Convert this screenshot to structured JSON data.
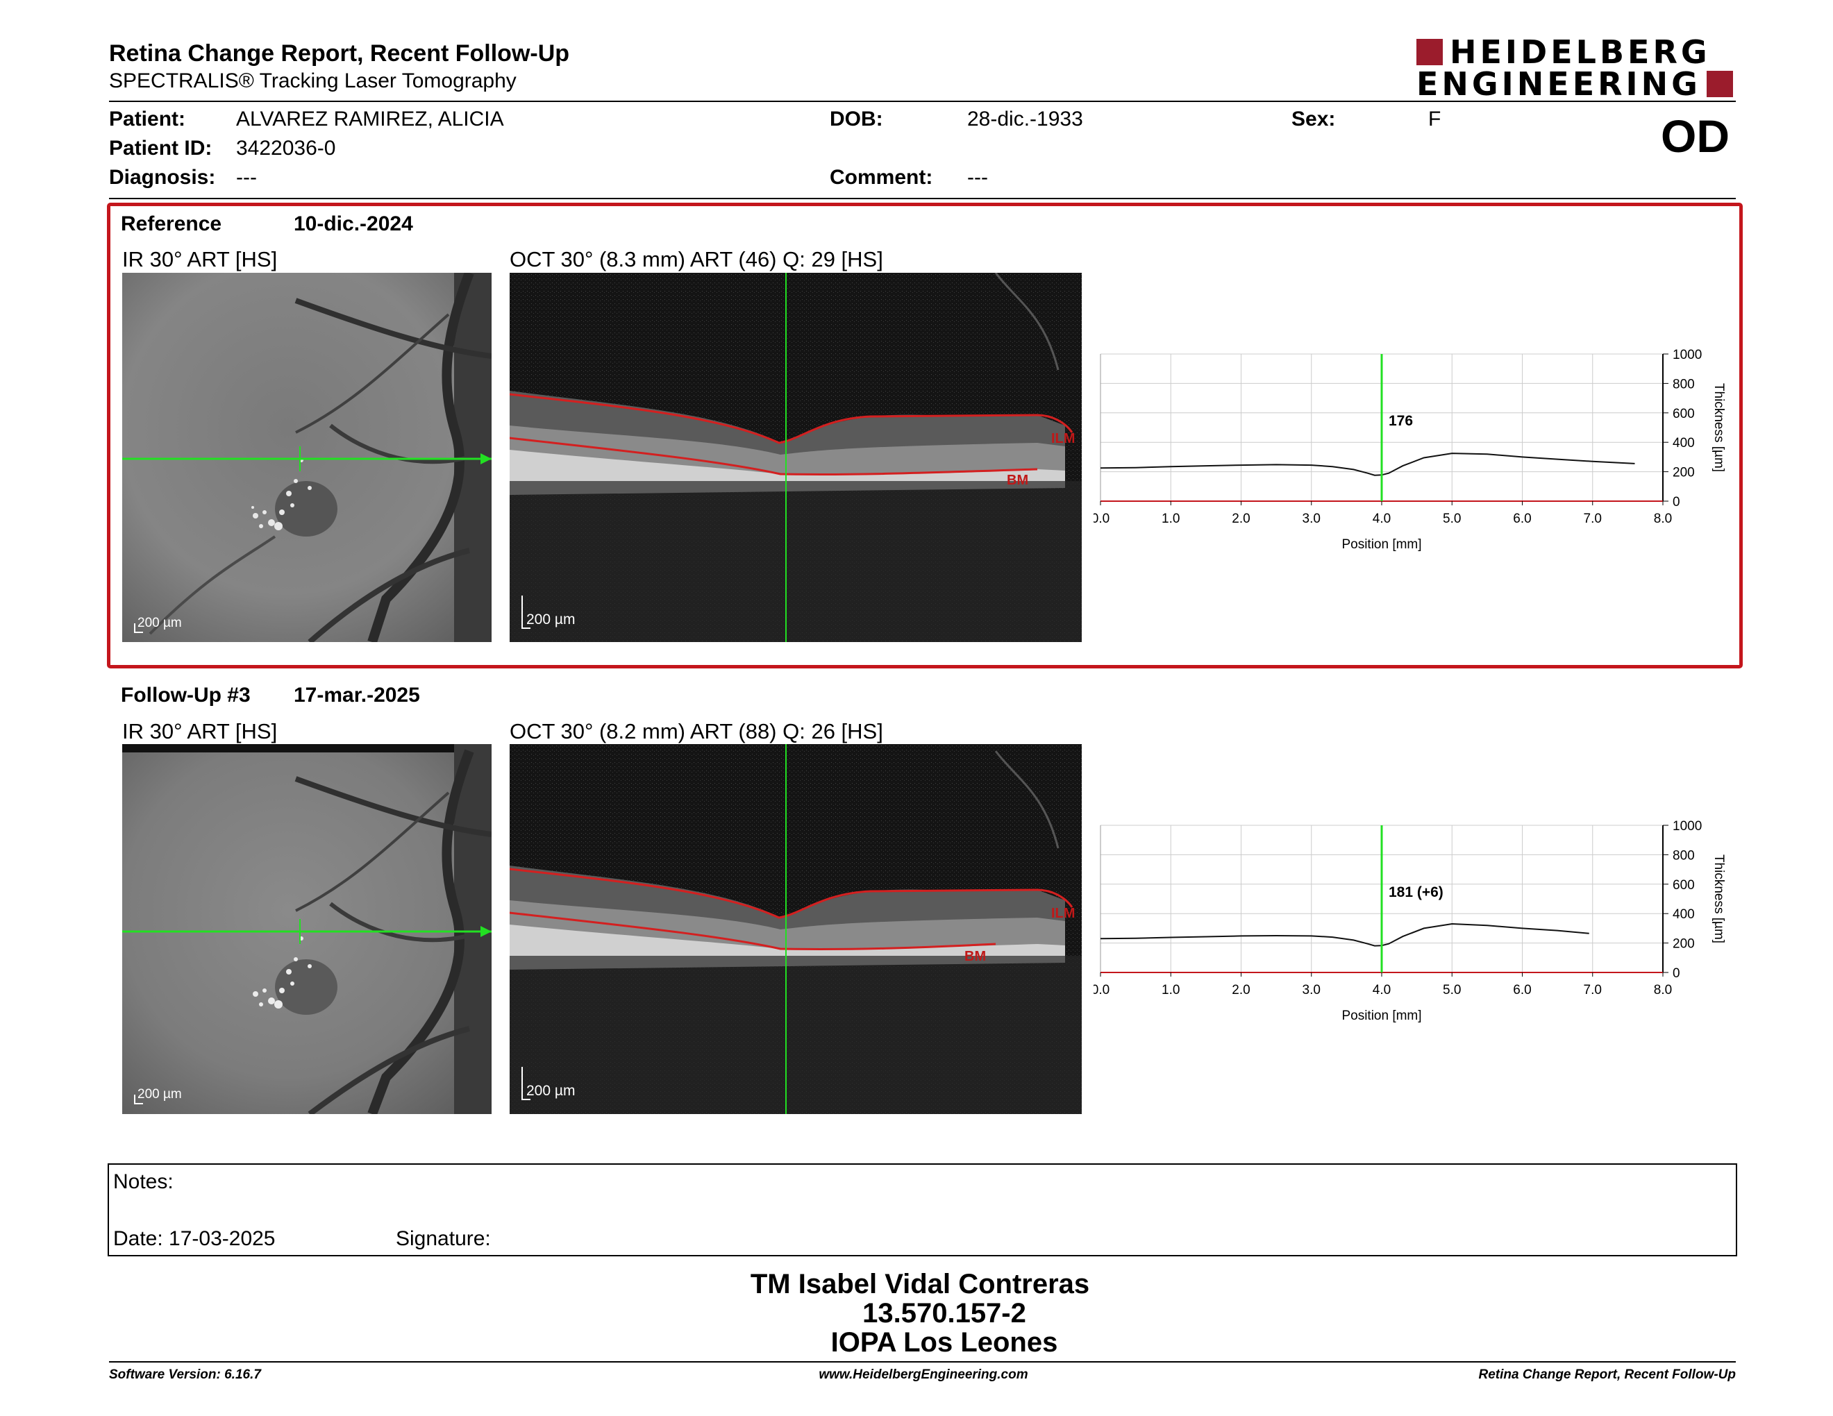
{
  "header": {
    "title": "Retina Change Report, Recent Follow-Up",
    "subtitle": "SPECTRALIS® Tracking Laser Tomography",
    "logo_line1": "HEIDELBERG",
    "logo_line2": "ENGINEERING",
    "eye": "OD"
  },
  "patient": {
    "patient_label": "Patient:",
    "patient_value": "ALVAREZ RAMIREZ, ALICIA",
    "dob_label": "DOB:",
    "dob_value": "28-dic.-1933",
    "sex_label": "Sex:",
    "sex_value": "F",
    "id_label": "Patient ID:",
    "id_value": "3422036-0",
    "diagnosis_label": "Diagnosis:",
    "diagnosis_value": "---",
    "comment_label": "Comment:",
    "comment_value": "---"
  },
  "reference": {
    "label": "Reference",
    "date": "10-dic.-2024",
    "ir_label": "IR 30° ART [HS]",
    "oct_label": "OCT 30° (8.3 mm) ART (46) Q: 29 [HS]",
    "ir_scale": "200 µm",
    "oct_scale": "200 µm",
    "ilm": "ILM",
    "bm": "BM"
  },
  "followup": {
    "label": "Follow-Up #3",
    "date": "17-mar.-2025",
    "ir_label": "IR 30° ART [HS]",
    "oct_label": "OCT 30° (8.2 mm) ART (88) Q: 26 [HS]",
    "ir_scale": "200 µm",
    "oct_scale": "200 µm",
    "ilm": "ILM",
    "bm": "BM"
  },
  "chart_data": [
    {
      "type": "line",
      "xlabel": "Position [mm]",
      "ylabel": "Thickness [µm]",
      "xlim": [
        0,
        8
      ],
      "ylim": [
        0,
        1000
      ],
      "x_ticks": [
        "0.0",
        "1.0",
        "2.0",
        "3.0",
        "4.0",
        "5.0",
        "6.0",
        "7.0",
        "8.0"
      ],
      "y_ticks": [
        "0",
        "200",
        "400",
        "600",
        "800",
        "1000"
      ],
      "cursor_x": 4.0,
      "cursor_label": "176",
      "grid": true,
      "series": [
        {
          "x": [
            0,
            0.5,
            1,
            1.5,
            2,
            2.5,
            3,
            3.3,
            3.6,
            3.8,
            3.9,
            4.0,
            4.1,
            4.3,
            4.6,
            5.0,
            5.5,
            6.0,
            6.5,
            7.0,
            7.6
          ],
          "y": [
            225,
            228,
            235,
            240,
            245,
            248,
            245,
            235,
            215,
            190,
            176,
            178,
            190,
            240,
            295,
            325,
            320,
            300,
            285,
            270,
            255
          ]
        }
      ]
    },
    {
      "type": "line",
      "xlabel": "Position [mm]",
      "ylabel": "Thickness [µm]",
      "xlim": [
        0,
        8
      ],
      "ylim": [
        0,
        1000
      ],
      "x_ticks": [
        "0.0",
        "1.0",
        "2.0",
        "3.0",
        "4.0",
        "5.0",
        "6.0",
        "7.0",
        "8.0"
      ],
      "y_ticks": [
        "0",
        "200",
        "400",
        "600",
        "800",
        "1000"
      ],
      "cursor_x": 4.0,
      "cursor_label": "181 (+6)",
      "grid": true,
      "series": [
        {
          "x": [
            0,
            0.5,
            1,
            1.5,
            2,
            2.5,
            3,
            3.3,
            3.6,
            3.8,
            3.9,
            4.0,
            4.1,
            4.3,
            4.6,
            5.0,
            5.5,
            6.0,
            6.5,
            6.95
          ],
          "y": [
            230,
            232,
            238,
            243,
            248,
            250,
            248,
            240,
            220,
            195,
            181,
            183,
            195,
            245,
            300,
            330,
            320,
            300,
            285,
            265
          ]
        }
      ]
    }
  ],
  "notes": {
    "label": "Notes:",
    "date_label": "Date: 17-03-2025",
    "signature_label": "Signature:"
  },
  "signature_block": {
    "line1": "TM Isabel Vidal Contreras",
    "line2": "13.570.157-2",
    "line3": "IOPA Los Leones"
  },
  "footer": {
    "left": "Software Version: 6.16.7",
    "center": "www.HeidelbergEngineering.com",
    "right": "Retina Change Report, Recent Follow-Up"
  }
}
